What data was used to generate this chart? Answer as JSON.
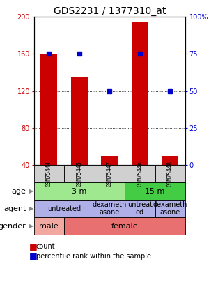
{
  "title": "GDS2231 / 1377310_at",
  "samples": [
    "GSM75444",
    "GSM75445",
    "GSM75447",
    "GSM75446",
    "GSM75448"
  ],
  "count_values": [
    160,
    135,
    50,
    195,
    50
  ],
  "percentile_values": [
    75,
    75,
    50,
    75,
    50
  ],
  "ylim_left": [
    40,
    200
  ],
  "ylim_right": [
    0,
    100
  ],
  "yticks_left": [
    40,
    80,
    120,
    160,
    200
  ],
  "yticks_right": [
    0,
    25,
    50,
    75,
    100
  ],
  "bar_color": "#cc0000",
  "dot_color": "#0000cc",
  "age_labels": [
    [
      "3 m",
      0,
      3
    ],
    [
      "15 m",
      3,
      5
    ]
  ],
  "age_colors": [
    "#a0e890",
    "#44cc44"
  ],
  "agent_labels": [
    [
      "untreated",
      0,
      2
    ],
    [
      "dexameth\nasone",
      2,
      3
    ],
    [
      "untreat\ned",
      3,
      4
    ],
    [
      "dexameth\nasone",
      4,
      5
    ]
  ],
  "agent_color": "#b0b0e8",
  "gender_labels": [
    [
      "male",
      0,
      1
    ],
    [
      "female",
      1,
      5
    ]
  ],
  "gender_colors": [
    "#f0a8a0",
    "#e87070"
  ],
  "sample_box_color": "#d0d0d0",
  "grid_color": "#000000",
  "title_fontsize": 10,
  "tick_fontsize": 7,
  "annot_fontsize": 7,
  "row_label_fontsize": 8
}
